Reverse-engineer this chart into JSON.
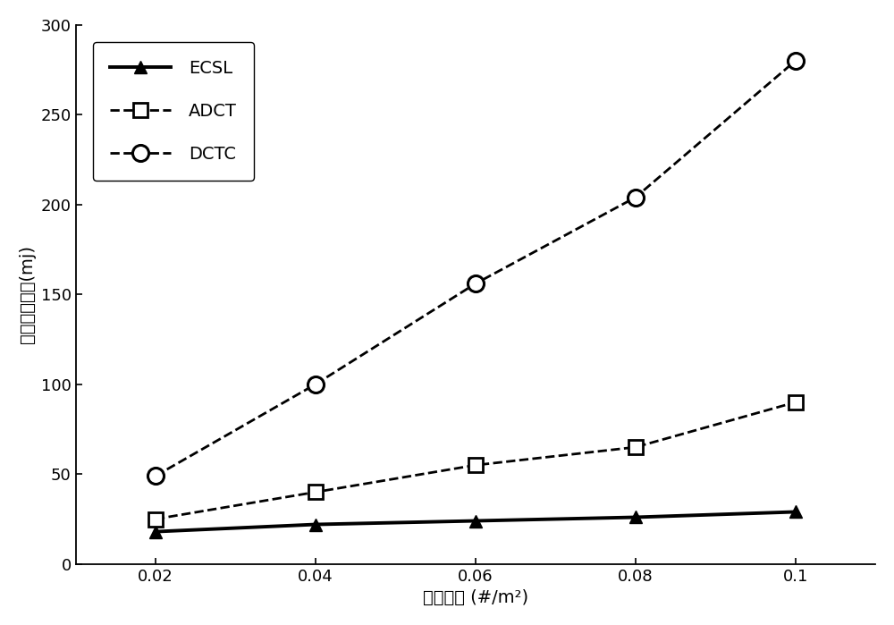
{
  "x": [
    0.02,
    0.04,
    0.06,
    0.08,
    0.1
  ],
  "ECSL": [
    18,
    22,
    24,
    26,
    29
  ],
  "ADCT": [
    25,
    40,
    55,
    65,
    90
  ],
  "DCTC": [
    49,
    100,
    156,
    204,
    280
  ],
  "xlabel": "节点密度 (#/m²)",
  "ylabel": "节点能量消耗(mj)",
  "ylim": [
    0,
    300
  ],
  "xlim": [
    0.01,
    0.11
  ],
  "xticks": [
    0.02,
    0.04,
    0.06,
    0.08,
    0.1
  ],
  "yticks": [
    0,
    50,
    100,
    150,
    200,
    250,
    300
  ],
  "legend_labels": [
    "ECSL",
    "ADCT",
    "DCTC"
  ],
  "line_color": "#000000",
  "bg_color": "#ffffff",
  "label_fontsize": 14,
  "tick_fontsize": 13,
  "legend_fontsize": 14
}
